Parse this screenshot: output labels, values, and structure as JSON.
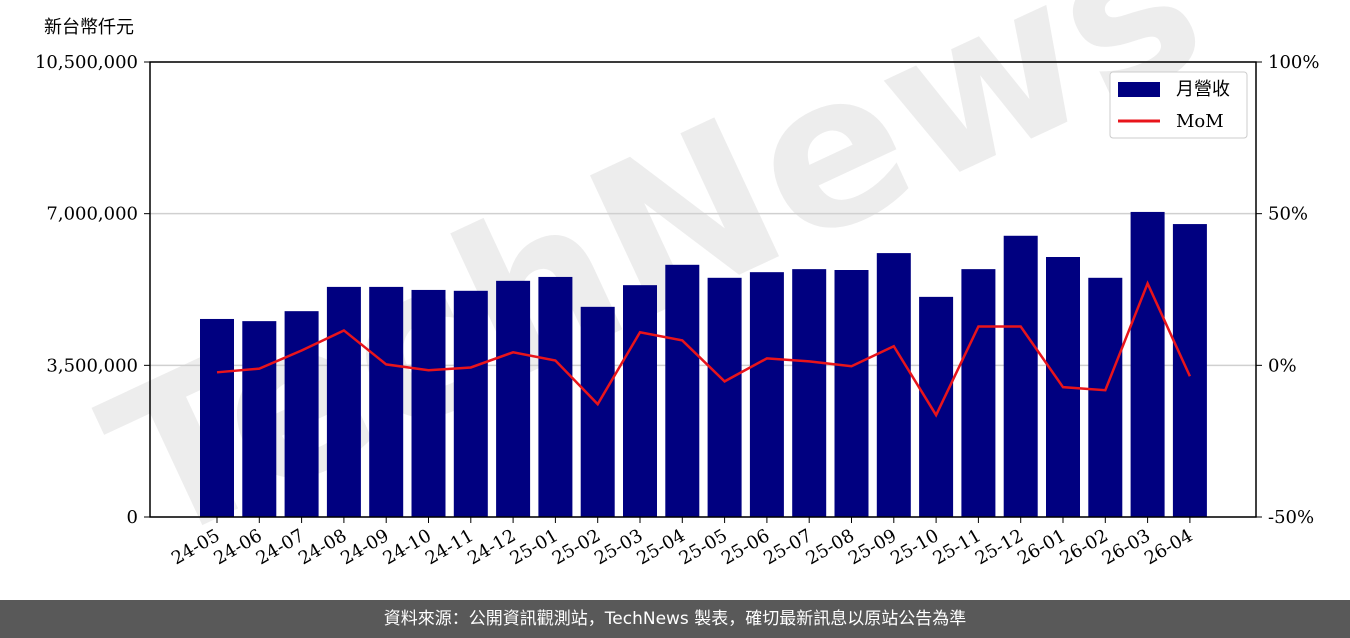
{
  "chart_data": {
    "type": "bar_line",
    "y_axis_label": "新台幣仟元",
    "watermark": "TechNews",
    "footer": "資料來源：公開資訊觀測站，TechNews 製表，確切最新訊息以原站公告為準",
    "categories": [
      "24-05",
      "24-06",
      "24-07",
      "24-08",
      "24-09",
      "24-10",
      "24-11",
      "24-12",
      "25-01",
      "25-02",
      "25-03",
      "25-04",
      "25-05",
      "25-06",
      "25-07",
      "25-08",
      "25-09",
      "25-10",
      "25-11",
      "25-12",
      "26-01",
      "26-02",
      "26-03",
      "26-04"
    ],
    "series": [
      {
        "name": "月營收",
        "color": "#000080",
        "type": "bar",
        "values": [
          4570000,
          4520000,
          4750000,
          5310000,
          5310000,
          5240000,
          5220000,
          5450000,
          5540000,
          4850000,
          5350000,
          5820000,
          5520000,
          5650000,
          5720000,
          5700000,
          6090000,
          5080000,
          5720000,
          6490000,
          6000000,
          5520000,
          7040000,
          6760000
        ]
      },
      {
        "name": "MoM",
        "color": "#e8141b",
        "type": "line",
        "axis": "y2",
        "values": [
          -2.3,
          -1.1,
          4.9,
          11.5,
          0.3,
          -1.6,
          -0.7,
          4.3,
          1.6,
          -12.8,
          10.9,
          8.2,
          -5.3,
          2.3,
          1.3,
          -0.3,
          6.3,
          -16.4,
          12.8,
          12.8,
          -7.2,
          -8.2,
          27.0,
          -3.6
        ]
      }
    ],
    "ylim": [
      0,
      10500000
    ],
    "yticks": [
      0,
      {
        "value": 3500000,
        "label": "3,500,000"
      },
      {
        "value": 7000000,
        "label": "7,000,000"
      },
      {
        "value": 10500000,
        "label": "10,500,000"
      }
    ],
    "y2lim": [
      -50,
      100
    ],
    "y2ticks": [
      {
        "value": -50,
        "label": "-50%"
      },
      {
        "value": 0,
        "label": "0%"
      },
      {
        "value": 50,
        "label": "50%"
      },
      {
        "value": 100,
        "label": "100%"
      }
    ],
    "grid": true,
    "legend": "upper right"
  }
}
